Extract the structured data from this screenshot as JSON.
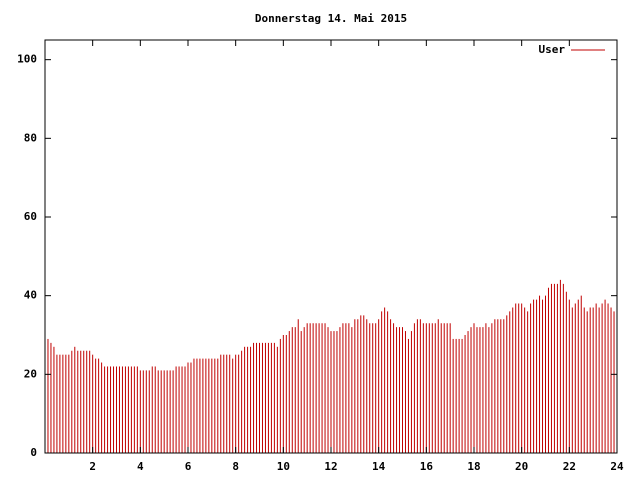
{
  "chart_data": {
    "type": "impulse",
    "title": "Donnerstag 14. Mai 2015",
    "xlim": [
      0,
      24
    ],
    "ylim": [
      0,
      105
    ],
    "xticks": [
      2,
      4,
      6,
      8,
      10,
      12,
      14,
      16,
      18,
      20,
      22,
      24
    ],
    "yticks": [
      0,
      20,
      40,
      60,
      80,
      100
    ],
    "legend": "top-right",
    "x": [
      0,
      0.125,
      0.25,
      0.375,
      0.5,
      0.625,
      0.75,
      0.875,
      1,
      1.125,
      1.25,
      1.375,
      1.5,
      1.625,
      1.75,
      1.875,
      2,
      2.125,
      2.25,
      2.375,
      2.5,
      2.625,
      2.75,
      2.875,
      3,
      3.125,
      3.25,
      3.375,
      3.5,
      3.625,
      3.75,
      3.875,
      4,
      4.125,
      4.25,
      4.375,
      4.5,
      4.625,
      4.75,
      4.875,
      5,
      5.125,
      5.25,
      5.375,
      5.5,
      5.625,
      5.75,
      5.875,
      6,
      6.125,
      6.25,
      6.375,
      6.5,
      6.625,
      6.75,
      6.875,
      7,
      7.125,
      7.25,
      7.375,
      7.5,
      7.625,
      7.75,
      7.875,
      8,
      8.125,
      8.25,
      8.375,
      8.5,
      8.625,
      8.75,
      8.875,
      9,
      9.125,
      9.25,
      9.375,
      9.5,
      9.625,
      9.75,
      9.875,
      10,
      10.125,
      10.25,
      10.375,
      10.5,
      10.625,
      10.75,
      10.875,
      11,
      11.125,
      11.25,
      11.375,
      11.5,
      11.625,
      11.75,
      11.875,
      12,
      12.125,
      12.25,
      12.375,
      12.5,
      12.625,
      12.75,
      12.875,
      13,
      13.125,
      13.25,
      13.375,
      13.5,
      13.625,
      13.75,
      13.875,
      14,
      14.125,
      14.25,
      14.375,
      14.5,
      14.625,
      14.75,
      14.875,
      15,
      15.125,
      15.25,
      15.375,
      15.5,
      15.625,
      15.75,
      15.875,
      16,
      16.125,
      16.25,
      16.375,
      16.5,
      16.625,
      16.75,
      16.875,
      17,
      17.125,
      17.25,
      17.375,
      17.5,
      17.625,
      17.75,
      17.875,
      18,
      18.125,
      18.25,
      18.375,
      18.5,
      18.625,
      18.75,
      18.875,
      19,
      19.125,
      19.25,
      19.375,
      19.5,
      19.625,
      19.75,
      19.875,
      20,
      20.125,
      20.25,
      20.375,
      20.5,
      20.625,
      20.75,
      20.875,
      21,
      21.125,
      21.25,
      21.375,
      21.5,
      21.625,
      21.75,
      21.875,
      22,
      22.125,
      22.25,
      22.375,
      22.5,
      22.625,
      22.75,
      22.875,
      23,
      23.125,
      23.25,
      23.375,
      23.5,
      23.625,
      23.75,
      23.875
    ],
    "series": [
      {
        "name": "User",
        "color": "#c00000",
        "values": [
          30,
          29,
          28,
          27,
          25,
          25,
          25,
          25,
          25,
          26,
          27,
          26,
          26,
          26,
          26,
          26,
          25,
          24,
          24,
          23,
          22,
          22,
          22,
          22,
          22,
          22,
          22,
          22,
          22,
          22,
          22,
          22,
          21,
          21,
          21,
          21,
          22,
          22,
          21,
          21,
          21,
          21,
          21,
          21,
          22,
          22,
          22,
          22,
          23,
          23,
          24,
          24,
          24,
          24,
          24,
          24,
          24,
          24,
          24,
          25,
          25,
          25,
          25,
          24,
          25,
          25,
          26,
          27,
          27,
          27,
          28,
          28,
          28,
          28,
          28,
          28,
          28,
          28,
          27,
          29,
          30,
          30,
          31,
          32,
          32,
          34,
          31,
          32,
          33,
          33,
          33,
          33,
          33,
          33,
          33,
          32,
          31,
          31,
          31,
          32,
          33,
          33,
          33,
          32,
          34,
          34,
          35,
          35,
          34,
          33,
          33,
          33,
          34,
          36,
          37,
          36,
          34,
          33,
          32,
          32,
          32,
          31,
          29,
          31,
          33,
          34,
          34,
          33,
          33,
          33,
          33,
          33,
          34,
          33,
          33,
          33,
          33,
          29,
          29,
          29,
          29,
          30,
          31,
          32,
          33,
          32,
          32,
          32,
          33,
          32,
          33,
          34,
          34,
          34,
          34,
          35,
          36,
          37,
          38,
          38,
          38,
          37,
          36,
          38,
          39,
          39,
          40,
          39,
          40,
          42,
          43,
          43,
          43,
          44,
          43,
          41,
          39,
          37,
          38,
          39,
          40,
          37,
          36,
          37,
          37,
          38,
          37,
          38,
          39,
          38,
          37,
          36
        ]
      }
    ]
  }
}
